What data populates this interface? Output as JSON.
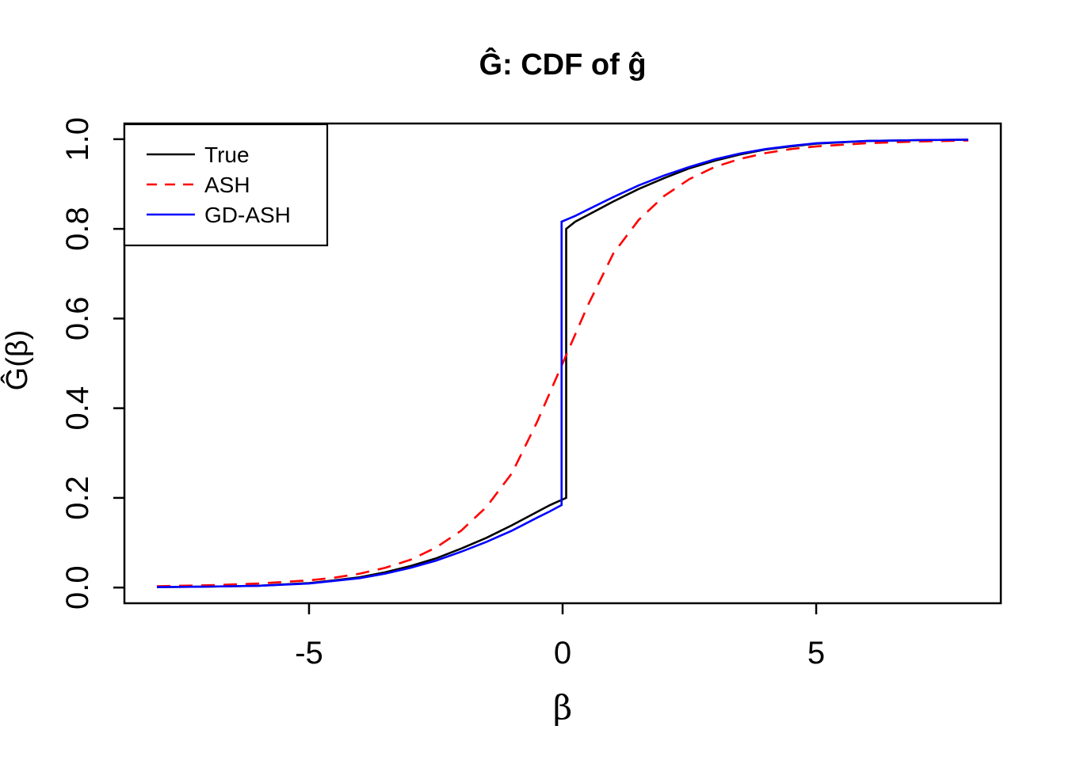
{
  "figure": {
    "background": "#ffffff"
  },
  "chart_data": {
    "type": "line",
    "title": "Ĝ: CDF of ĝ",
    "xlabel": "β",
    "ylabel": "Ĝ(β)",
    "x_usr": [
      -8.64,
      8.64
    ],
    "y_usr": [
      -0.035,
      1.035
    ],
    "xlim_data": [
      -8,
      8
    ],
    "ylim_data": [
      0,
      1
    ],
    "grid": false,
    "x_ticks": [
      {
        "v": -5,
        "label": "-5"
      },
      {
        "v": 0,
        "label": "0"
      },
      {
        "v": 5,
        "label": "5"
      }
    ],
    "y_ticks": [
      {
        "v": 0.0,
        "label": "0.0"
      },
      {
        "v": 0.2,
        "label": "0.2"
      },
      {
        "v": 0.4,
        "label": "0.4"
      },
      {
        "v": 0.6,
        "label": "0.6"
      },
      {
        "v": 0.8,
        "label": "0.8"
      },
      {
        "v": 1.0,
        "label": "1.0"
      }
    ],
    "legend": {
      "position": "topleft"
    },
    "series": [
      {
        "name": "True",
        "color": "#000000",
        "style": "solid",
        "description": "step CDF: point mass at 0 jumping from 0.20 to 0.80",
        "points": [
          [
            -8,
            0.001
          ],
          [
            -7,
            0.002
          ],
          [
            -6,
            0.004
          ],
          [
            -5,
            0.01
          ],
          [
            -4.5,
            0.016
          ],
          [
            -4,
            0.023
          ],
          [
            -3.5,
            0.034
          ],
          [
            -3,
            0.048
          ],
          [
            -2.5,
            0.065
          ],
          [
            -2,
            0.087
          ],
          [
            -1.5,
            0.111
          ],
          [
            -1,
            0.139
          ],
          [
            -0.5,
            0.169
          ],
          [
            -0.25,
            0.184
          ],
          [
            0.07,
            0.2
          ],
          [
            0.07,
            0.8
          ],
          [
            0.25,
            0.816
          ],
          [
            0.5,
            0.831
          ],
          [
            1,
            0.861
          ],
          [
            1.5,
            0.889
          ],
          [
            2,
            0.913
          ],
          [
            2.5,
            0.935
          ],
          [
            3,
            0.952
          ],
          [
            3.5,
            0.966
          ],
          [
            4,
            0.977
          ],
          [
            4.5,
            0.984
          ],
          [
            5,
            0.99
          ],
          [
            6,
            0.996
          ],
          [
            7,
            0.998
          ],
          [
            8,
            0.999
          ]
        ]
      },
      {
        "name": "ASH",
        "color": "#ff0000",
        "style": "dashed",
        "description": "smooth sigmoid CDF through (0, 0.5)",
        "points": [
          [
            -8,
            0.003
          ],
          [
            -7,
            0.005
          ],
          [
            -6,
            0.009
          ],
          [
            -5,
            0.016
          ],
          [
            -4.5,
            0.022
          ],
          [
            -4,
            0.031
          ],
          [
            -3.5,
            0.044
          ],
          [
            -3,
            0.062
          ],
          [
            -2.5,
            0.089
          ],
          [
            -2,
            0.127
          ],
          [
            -1.5,
            0.18
          ],
          [
            -1,
            0.255
          ],
          [
            -0.5,
            0.37
          ],
          [
            0,
            0.5
          ],
          [
            0.5,
            0.63
          ],
          [
            1,
            0.745
          ],
          [
            1.5,
            0.82
          ],
          [
            2,
            0.873
          ],
          [
            2.5,
            0.911
          ],
          [
            3,
            0.938
          ],
          [
            3.5,
            0.956
          ],
          [
            4,
            0.969
          ],
          [
            4.5,
            0.978
          ],
          [
            5,
            0.984
          ],
          [
            6,
            0.991
          ],
          [
            7,
            0.995
          ],
          [
            8,
            0.997
          ]
        ]
      },
      {
        "name": "GD-ASH",
        "color": "#0000ff",
        "style": "solid",
        "description": "step CDF estimate: jump from 0.184 to 0.816 at 0",
        "points": [
          [
            -8,
            0.001
          ],
          [
            -7,
            0.002
          ],
          [
            -6,
            0.004
          ],
          [
            -5,
            0.009
          ],
          [
            -4.5,
            0.015
          ],
          [
            -4,
            0.021
          ],
          [
            -3.5,
            0.031
          ],
          [
            -3,
            0.044
          ],
          [
            -2.5,
            0.06
          ],
          [
            -2,
            0.08
          ],
          [
            -1.5,
            0.102
          ],
          [
            -1,
            0.127
          ],
          [
            -0.5,
            0.156
          ],
          [
            -0.25,
            0.17
          ],
          [
            -0.02,
            0.184
          ],
          [
            -0.02,
            0.816
          ],
          [
            0.25,
            0.829
          ],
          [
            0.5,
            0.843
          ],
          [
            1,
            0.871
          ],
          [
            1.5,
            0.897
          ],
          [
            2,
            0.919
          ],
          [
            2.5,
            0.938
          ],
          [
            3,
            0.955
          ],
          [
            3.5,
            0.968
          ],
          [
            4,
            0.978
          ],
          [
            4.5,
            0.985
          ],
          [
            5,
            0.991
          ],
          [
            6,
            0.996
          ],
          [
            7,
            0.998
          ],
          [
            8,
            0.999
          ]
        ]
      }
    ]
  }
}
